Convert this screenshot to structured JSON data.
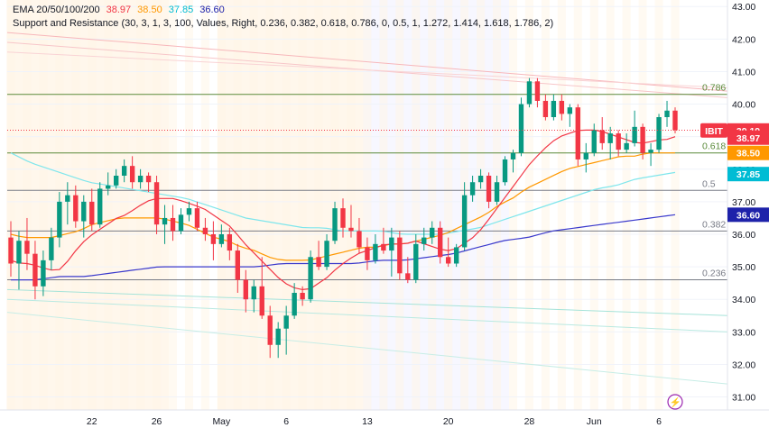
{
  "legend": {
    "ema_label": "EMA 20/50/100/200",
    "ema_values": [
      {
        "value": "38.97",
        "color": "#f23645"
      },
      {
        "value": "38.50",
        "color": "#ff9800"
      },
      {
        "value": "37.85",
        "color": "#00bcd4"
      },
      {
        "value": "36.60",
        "color": "#1e22aa"
      }
    ],
    "sr_label": "Support and Resistance (30, 3, 1, 3, 100, Values, Right, 0.236, 0.382, 0.618, 0.786, 0, 0.5, 1, 1.272, 1.414, 1.618, 1.786, 2)"
  },
  "colors": {
    "up": "#089981",
    "down": "#f23645",
    "ema20": "#f23645",
    "ema50": "#ff9800",
    "ema100": "#7fe6ec",
    "ema200": "#3a39cc",
    "fib": "#5a8a3a"
  },
  "chart_data": {
    "type": "candlestick",
    "symbol": "IBIT",
    "price_tag": "39.19",
    "y_ticks": [
      "31.00",
      "32.00",
      "33.00",
      "34.00",
      "35.00",
      "36.00",
      "37.00",
      "38.00",
      "39.00",
      "40.00",
      "41.00",
      "42.00",
      "43.00"
    ],
    "x_ticks": [
      {
        "label": "22",
        "i": 5
      },
      {
        "label": "26",
        "i": 9
      },
      {
        "label": "May",
        "i": 13
      },
      {
        "label": "6",
        "i": 17
      },
      {
        "label": "13",
        "i": 22
      },
      {
        "label": "20",
        "i": 27
      },
      {
        "label": "28",
        "i": 32
      },
      {
        "label": "Jun",
        "i": 36
      },
      {
        "label": "6",
        "i": 40
      }
    ],
    "ylim": [
      30.6,
      43.2
    ],
    "fib_levels": [
      {
        "label": "0.786",
        "value": 40.3
      },
      {
        "label": "0.618",
        "value": 38.5
      },
      {
        "label": "0.5",
        "value": 37.35
      },
      {
        "label": "0.382",
        "value": 36.1
      },
      {
        "label": "0.236",
        "value": 34.6
      }
    ],
    "ema_tags": [
      {
        "value": "38.97",
        "color": "#f23645"
      },
      {
        "value": "38.50",
        "color": "#ff9800"
      },
      {
        "value": "37.85",
        "color": "#00bcd4"
      },
      {
        "value": "36.60",
        "color": "#1e22aa"
      }
    ],
    "bands": [
      {
        "from": 0,
        "to": 10,
        "color": "#fff1dc"
      },
      {
        "from": 13,
        "to": 22,
        "color": "#fff1dc"
      },
      {
        "from": 22,
        "to": 31,
        "color": "#f1f1ff"
      }
    ],
    "candles": [
      {
        "o": 35.9,
        "h": 36.4,
        "l": 34.7,
        "c": 35.1
      },
      {
        "o": 35.1,
        "h": 36.1,
        "l": 34.3,
        "c": 35.8
      },
      {
        "o": 35.8,
        "h": 36.5,
        "l": 34.9,
        "c": 35.4
      },
      {
        "o": 35.4,
        "h": 35.8,
        "l": 34.0,
        "c": 34.4
      },
      {
        "o": 34.4,
        "h": 35.5,
        "l": 34.1,
        "c": 35.2
      },
      {
        "o": 35.2,
        "h": 36.2,
        "l": 34.9,
        "c": 35.9
      },
      {
        "o": 35.9,
        "h": 37.3,
        "l": 35.6,
        "c": 37.0
      },
      {
        "o": 37.0,
        "h": 37.6,
        "l": 36.3,
        "c": 37.2
      },
      {
        "o": 37.2,
        "h": 37.5,
        "l": 36.2,
        "c": 36.4
      },
      {
        "o": 36.4,
        "h": 37.2,
        "l": 35.9,
        "c": 37.0
      },
      {
        "o": 37.0,
        "h": 37.4,
        "l": 36.1,
        "c": 36.3
      },
      {
        "o": 36.3,
        "h": 37.6,
        "l": 36.2,
        "c": 37.4
      },
      {
        "o": 37.4,
        "h": 37.9,
        "l": 37.2,
        "c": 37.5
      },
      {
        "o": 37.5,
        "h": 38.0,
        "l": 37.4,
        "c": 37.8
      },
      {
        "o": 37.8,
        "h": 38.3,
        "l": 37.6,
        "c": 38.1
      },
      {
        "o": 38.1,
        "h": 38.4,
        "l": 37.4,
        "c": 37.6
      },
      {
        "o": 37.6,
        "h": 38.0,
        "l": 37.4,
        "c": 37.8
      },
      {
        "o": 37.8,
        "h": 37.9,
        "l": 37.3,
        "c": 37.6
      },
      {
        "o": 37.6,
        "h": 37.8,
        "l": 36.0,
        "c": 36.3
      },
      {
        "o": 36.3,
        "h": 36.9,
        "l": 35.7,
        "c": 36.5
      },
      {
        "o": 36.5,
        "h": 36.9,
        "l": 35.8,
        "c": 36.1
      },
      {
        "o": 36.1,
        "h": 36.8,
        "l": 36.0,
        "c": 36.6
      },
      {
        "o": 36.6,
        "h": 37.0,
        "l": 36.4,
        "c": 36.8
      },
      {
        "o": 36.8,
        "h": 37.0,
        "l": 36.1,
        "c": 36.2
      },
      {
        "o": 36.2,
        "h": 36.5,
        "l": 35.8,
        "c": 36.0
      },
      {
        "o": 36.0,
        "h": 36.4,
        "l": 35.2,
        "c": 35.7
      },
      {
        "o": 35.7,
        "h": 36.3,
        "l": 35.6,
        "c": 36.0
      },
      {
        "o": 36.0,
        "h": 36.2,
        "l": 35.2,
        "c": 35.5
      },
      {
        "o": 35.5,
        "h": 35.7,
        "l": 34.2,
        "c": 34.6
      },
      {
        "o": 34.6,
        "h": 34.9,
        "l": 33.6,
        "c": 34.0
      },
      {
        "o": 34.0,
        "h": 34.6,
        "l": 33.6,
        "c": 34.4
      },
      {
        "o": 34.4,
        "h": 35.3,
        "l": 33.4,
        "c": 33.5
      },
      {
        "o": 33.5,
        "h": 33.8,
        "l": 32.2,
        "c": 32.6
      },
      {
        "o": 32.6,
        "h": 33.3,
        "l": 32.2,
        "c": 33.1
      },
      {
        "o": 33.1,
        "h": 33.8,
        "l": 32.3,
        "c": 33.5
      },
      {
        "o": 33.5,
        "h": 34.5,
        "l": 33.4,
        "c": 34.2
      },
      {
        "o": 34.2,
        "h": 34.4,
        "l": 33.8,
        "c": 34.0
      },
      {
        "o": 34.0,
        "h": 35.5,
        "l": 33.9,
        "c": 35.3
      },
      {
        "o": 35.3,
        "h": 35.8,
        "l": 34.9,
        "c": 35.0
      },
      {
        "o": 35.0,
        "h": 36.0,
        "l": 34.9,
        "c": 35.8
      },
      {
        "o": 35.8,
        "h": 37.0,
        "l": 35.7,
        "c": 36.8
      },
      {
        "o": 36.8,
        "h": 37.1,
        "l": 35.9,
        "c": 36.2
      },
      {
        "o": 36.2,
        "h": 36.9,
        "l": 35.9,
        "c": 36.1
      },
      {
        "o": 36.1,
        "h": 36.5,
        "l": 35.4,
        "c": 35.6
      },
      {
        "o": 35.6,
        "h": 35.9,
        "l": 34.9,
        "c": 35.2
      },
      {
        "o": 35.2,
        "h": 36.0,
        "l": 35.1,
        "c": 35.7
      },
      {
        "o": 35.7,
        "h": 36.2,
        "l": 35.4,
        "c": 35.5
      },
      {
        "o": 35.5,
        "h": 36.2,
        "l": 34.7,
        "c": 35.9
      },
      {
        "o": 35.9,
        "h": 36.1,
        "l": 34.6,
        "c": 34.8
      },
      {
        "o": 34.8,
        "h": 35.3,
        "l": 34.5,
        "c": 34.6
      },
      {
        "o": 34.6,
        "h": 36.0,
        "l": 34.5,
        "c": 35.7
      },
      {
        "o": 35.7,
        "h": 36.2,
        "l": 35.5,
        "c": 35.9
      },
      {
        "o": 35.9,
        "h": 36.4,
        "l": 35.7,
        "c": 36.2
      },
      {
        "o": 36.2,
        "h": 36.4,
        "l": 35.1,
        "c": 35.3
      },
      {
        "o": 35.3,
        "h": 35.9,
        "l": 35.0,
        "c": 35.1
      },
      {
        "o": 35.1,
        "h": 35.7,
        "l": 35.0,
        "c": 35.6
      },
      {
        "o": 35.6,
        "h": 37.6,
        "l": 35.5,
        "c": 37.2
      },
      {
        "o": 37.2,
        "h": 37.8,
        "l": 37.0,
        "c": 37.6
      },
      {
        "o": 37.6,
        "h": 38.0,
        "l": 37.4,
        "c": 37.8
      },
      {
        "o": 37.8,
        "h": 37.9,
        "l": 36.8,
        "c": 37.0
      },
      {
        "o": 37.0,
        "h": 37.8,
        "l": 36.9,
        "c": 37.6
      },
      {
        "o": 37.6,
        "h": 38.4,
        "l": 37.5,
        "c": 38.3
      },
      {
        "o": 38.3,
        "h": 38.6,
        "l": 37.9,
        "c": 38.5
      },
      {
        "o": 38.5,
        "h": 40.2,
        "l": 38.4,
        "c": 40.0
      },
      {
        "o": 40.0,
        "h": 40.8,
        "l": 39.9,
        "c": 40.7
      },
      {
        "o": 40.7,
        "h": 40.8,
        "l": 39.9,
        "c": 40.1
      },
      {
        "o": 40.1,
        "h": 40.3,
        "l": 39.5,
        "c": 39.6
      },
      {
        "o": 39.6,
        "h": 40.3,
        "l": 39.5,
        "c": 40.1
      },
      {
        "o": 40.1,
        "h": 40.3,
        "l": 39.5,
        "c": 39.7
      },
      {
        "o": 39.7,
        "h": 40.0,
        "l": 39.3,
        "c": 39.9
      },
      {
        "o": 39.9,
        "h": 40.0,
        "l": 38.1,
        "c": 38.3
      },
      {
        "o": 38.3,
        "h": 38.8,
        "l": 37.9,
        "c": 38.5
      },
      {
        "o": 38.5,
        "h": 39.4,
        "l": 38.4,
        "c": 39.2
      },
      {
        "o": 39.2,
        "h": 39.6,
        "l": 38.6,
        "c": 38.8
      },
      {
        "o": 38.8,
        "h": 39.3,
        "l": 38.3,
        "c": 39.1
      },
      {
        "o": 39.1,
        "h": 39.2,
        "l": 38.4,
        "c": 38.6
      },
      {
        "o": 38.6,
        "h": 39.1,
        "l": 38.5,
        "c": 38.8
      },
      {
        "o": 38.8,
        "h": 39.8,
        "l": 38.7,
        "c": 39.3
      },
      {
        "o": 39.3,
        "h": 39.4,
        "l": 38.3,
        "c": 38.5
      },
      {
        "o": 38.5,
        "h": 38.8,
        "l": 38.1,
        "c": 38.6
      },
      {
        "o": 38.6,
        "h": 39.7,
        "l": 38.5,
        "c": 39.6
      },
      {
        "o": 39.6,
        "h": 40.1,
        "l": 39.3,
        "c": 39.8
      },
      {
        "o": 39.8,
        "h": 39.9,
        "l": 39.1,
        "c": 39.2
      }
    ],
    "ema20": [
      35.2,
      35.1,
      35.1,
      35.0,
      34.9,
      34.9,
      35.2,
      35.6,
      35.9,
      36.1,
      36.3,
      36.5,
      36.6,
      36.8,
      37.0,
      37.1,
      37.1,
      37.1,
      37.0,
      36.9,
      36.8,
      36.6,
      36.4,
      36.2,
      35.8,
      35.5,
      35.2,
      34.9,
      34.6,
      34.4,
      34.3,
      34.3,
      34.5,
      34.7,
      35.0,
      35.2,
      35.4,
      35.5,
      35.6,
      35.7,
      35.7,
      35.7,
      35.8,
      35.7,
      35.6,
      35.5,
      35.5,
      35.7,
      35.9,
      36.2,
      36.6,
      37.0,
      37.4,
      37.8,
      38.2,
      38.5,
      38.8,
      39.0,
      39.1,
      39.2,
      39.2,
      39.2,
      39.1,
      39.0,
      38.9,
      38.8,
      38.8,
      38.9,
      38.9,
      39.0
    ],
    "ema50": [
      36.0,
      35.9,
      35.9,
      35.9,
      36.0,
      36.1,
      36.3,
      36.4,
      36.5,
      36.5,
      36.5,
      36.5,
      36.4,
      36.3,
      36.1,
      35.9,
      35.8,
      35.6,
      35.5,
      35.3,
      35.2,
      35.2,
      35.2,
      35.3,
      35.4,
      35.5,
      35.6,
      35.6,
      35.7,
      35.7,
      35.8,
      35.9,
      36.0,
      36.2,
      36.4,
      36.6,
      36.9,
      37.1,
      37.4,
      37.6,
      37.8,
      38.0,
      38.1,
      38.2,
      38.3,
      38.4,
      38.4,
      38.5,
      38.5,
      38.5
    ],
    "ema100": [
      38.5,
      38.2,
      38.0,
      37.8,
      37.6,
      37.5,
      37.4,
      37.3,
      37.2,
      37.1,
      36.9,
      36.7,
      36.5,
      36.4,
      36.3,
      36.2,
      36.2,
      36.1,
      36.1,
      36.1,
      36.0,
      36.0,
      36.0,
      36.1,
      36.2,
      36.4,
      36.6,
      36.8,
      37.0,
      37.2,
      37.4,
      37.5,
      37.7,
      37.8,
      37.9
    ],
    "ema200": [
      34.6,
      34.6,
      34.7,
      34.7,
      34.8,
      34.9,
      35.0,
      35.0,
      35.0,
      35.0,
      35.0,
      35.1,
      35.1,
      35.1,
      35.1,
      35.2,
      35.2,
      35.3,
      35.4,
      35.6,
      35.8,
      35.9,
      36.1,
      36.2,
      36.3,
      36.4,
      36.5,
      36.6
    ]
  },
  "misc": {
    "lightning_icon_label": "⚡"
  }
}
